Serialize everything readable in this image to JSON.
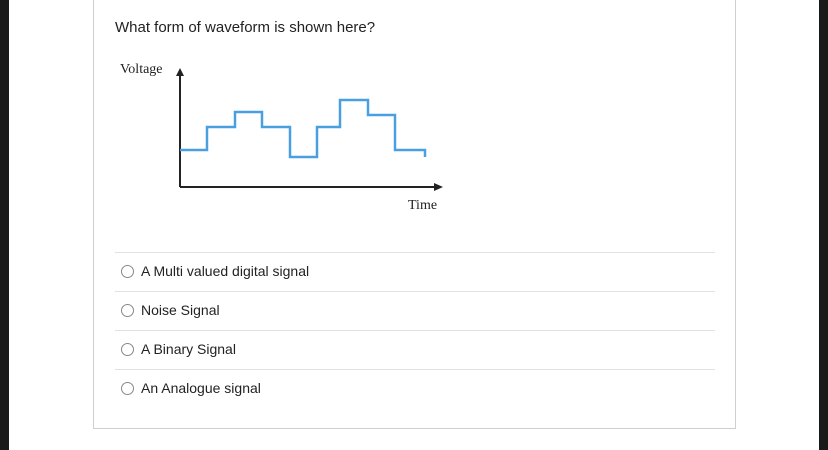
{
  "question": "What form of waveform is shown here?",
  "diagram": {
    "y_label": "Voltage",
    "x_label": "Time"
  },
  "options": [
    "A Multi valued digital signal",
    "Noise Signal",
    "A Binary Signal",
    "An Analogue signal"
  ]
}
